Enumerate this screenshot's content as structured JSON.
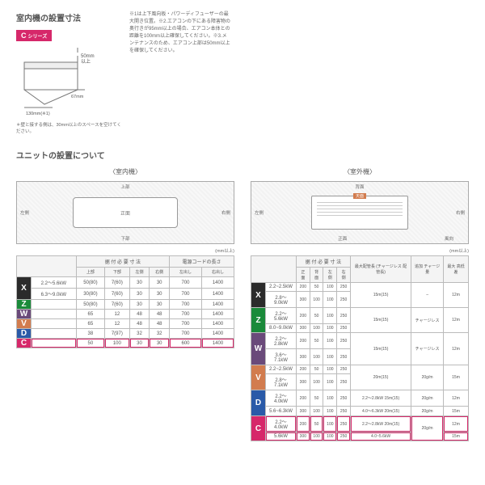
{
  "colors": {
    "X": "#2b2b2b",
    "Z": "#1a8a3a",
    "W": "#6a4a7a",
    "V": "#d27c4e",
    "D": "#2a5aa8",
    "C": "#d6286a",
    "hl": "#d6286a"
  },
  "top": {
    "title": "室内機の設置寸法",
    "badge": {
      "letter": "C",
      "suffix": "シリーズ"
    },
    "dims": {
      "top": "50mm\n以上",
      "side": "67mm",
      "bottom": "130mm(※1)"
    },
    "notes": "※1は上下風向板・パワーディフューザーの最大開き位置。※2.エアコンの下にある障害物の奥行きが95mm以上の場合、エアコン本体との距離を100mm以上確保してください。※3.メンテナンスのため、エアコン上部は50mm以上を確保してください。",
    "wall": "＊壁と接する側は、30mm以上のスペースを空けてください。"
  },
  "unit": {
    "title": "ユニットの設置について",
    "indoor_label": "〈室内機〉",
    "outdoor_label": "〈室外機〉",
    "indoor_center": "正面",
    "pos": {
      "top": "上部",
      "bottom": "下部",
      "left": "左側",
      "right": "右側",
      "back": "背面",
      "front": "正面",
      "wind": "風向"
    },
    "mm": "(mm以上)"
  },
  "leftTable": {
    "head1": [
      "据 付 必 要 寸 法",
      "電源コードの長さ"
    ],
    "head2": [
      "上部",
      "下部",
      "左側",
      "右側",
      "左出し",
      "右出し"
    ],
    "rows": [
      {
        "s": "X",
        "range": [
          "2.2～5.6kW",
          "6.3～9.0kW"
        ],
        "v": [
          [
            "50(80)",
            "7(60)",
            "30",
            "30",
            "700",
            "1400"
          ],
          [
            "30(80)",
            "7(60)",
            "30",
            "30",
            "700",
            "1400"
          ]
        ]
      },
      {
        "s": "Z",
        "range": [
          ""
        ],
        "v": [
          [
            "50(80)",
            "7(60)",
            "30",
            "30",
            "700",
            "1400"
          ]
        ]
      },
      {
        "s": "W",
        "range": [
          ""
        ],
        "v": [
          [
            "65",
            "12",
            "48",
            "48",
            "700",
            "1400"
          ]
        ]
      },
      {
        "s": "V",
        "range": [
          ""
        ],
        "v": [
          [
            "65",
            "12",
            "48",
            "48",
            "700",
            "1400"
          ]
        ]
      },
      {
        "s": "D",
        "range": [
          ""
        ],
        "v": [
          [
            "38",
            "7(97)",
            "32",
            "32",
            "700",
            "1400"
          ]
        ]
      },
      {
        "s": "C",
        "range": [
          ""
        ],
        "v": [
          [
            "50",
            "100",
            "30",
            "30",
            "600",
            "1400"
          ]
        ],
        "hl": true
      }
    ]
  },
  "rightTable": {
    "head1": [
      "据 付 必 要 寸 法",
      "最大配管長\n(チャージレス\n配管長)",
      "追加\nチャージ量",
      "最大\n高低差"
    ],
    "head2": [
      "正面",
      "背面",
      "左側",
      "右側"
    ],
    "rows": [
      {
        "s": "X",
        "range": [
          "2.2~2.5kW",
          "2.8～9.0kW"
        ],
        "v": [
          [
            "200",
            "50",
            "100",
            "250",
            "15m(15)",
            "–",
            "12m"
          ],
          [
            "300",
            "100",
            "100",
            "250",
            "",
            "",
            ""
          ]
        ]
      },
      {
        "s": "Z",
        "range": [
          "2.2～5.6kW",
          "8.0~9.0kW"
        ],
        "v": [
          [
            "200",
            "50",
            "100",
            "250",
            "15m(15)",
            "チャージレス",
            "12m"
          ],
          [
            "300",
            "100",
            "100",
            "250",
            "",
            "",
            ""
          ]
        ]
      },
      {
        "s": "W",
        "range": [
          "2.2～2.8kW",
          "3.6～7.1kW"
        ],
        "v": [
          [
            "200",
            "50",
            "100",
            "250",
            "15m(15)",
            "チャージレス",
            "12m"
          ],
          [
            "300",
            "100",
            "100",
            "250",
            "",
            "",
            ""
          ]
        ]
      },
      {
        "s": "V",
        "range": [
          "2.2~2.5kW",
          "2.8～7.1kW"
        ],
        "v": [
          [
            "200",
            "50",
            "100",
            "250",
            "20m(15)",
            "20g/m",
            "15m"
          ],
          [
            "300",
            "100",
            "100",
            "250",
            "",
            "",
            ""
          ]
        ]
      },
      {
        "s": "D",
        "range": [
          "2.2～4.0kW",
          "5.6~6.3kW"
        ],
        "v": [
          [
            "200",
            "50",
            "100",
            "250",
            "2.2～2.8kW 15m(15)",
            "20g/m",
            "12m"
          ],
          [
            "300",
            "100",
            "100",
            "250",
            "4.0～6.3kW 20m(15)",
            "20g/m",
            "15m"
          ]
        ]
      },
      {
        "s": "C",
        "range": [
          "2.2～4.0kW",
          "5.6kW"
        ],
        "v": [
          [
            "200",
            "50",
            "100",
            "250",
            "2.2～2.8kW 20m(15)",
            "20g/m",
            "12m"
          ],
          [
            "300",
            "100",
            "100",
            "250",
            "4.0~5.6kW",
            "",
            "15m"
          ]
        ],
        "hl": true
      }
    ]
  }
}
